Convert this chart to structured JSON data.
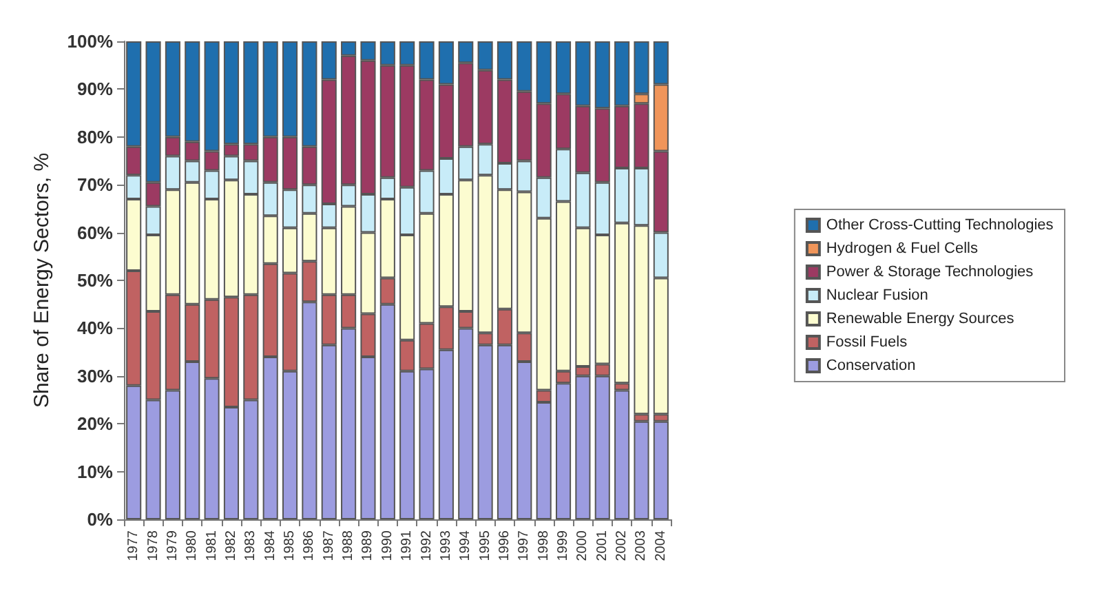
{
  "chart_data": {
    "type": "bar",
    "stacked": true,
    "ylabel": "Share of Energy Sectors, %",
    "categories": [
      "1977",
      "1978",
      "1979",
      "1980",
      "1981",
      "1982",
      "1983",
      "1984",
      "1985",
      "1986",
      "1987",
      "1988",
      "1989",
      "1990",
      "1991",
      "1992",
      "1993",
      "1994",
      "1995",
      "1996",
      "1997",
      "1998",
      "1999",
      "2000",
      "2001",
      "2002",
      "2003",
      "2004"
    ],
    "series": [
      {
        "name": "Conservation",
        "color": "#9c9ce0",
        "values": [
          28,
          25,
          27,
          33,
          29.5,
          23.5,
          25,
          34,
          31,
          45.5,
          36.5,
          40,
          34,
          45,
          31,
          31.5,
          35.5,
          40,
          36.5,
          36.5,
          33,
          24.5,
          28.5,
          30,
          30,
          27,
          20.5,
          20.5
        ]
      },
      {
        "name": "Fossil Fuels",
        "color": "#c06262",
        "values": [
          24,
          18.5,
          20,
          12,
          16.5,
          23,
          22,
          19.5,
          20.5,
          8.5,
          10.5,
          7,
          9,
          5.5,
          6.5,
          9.5,
          9,
          3.5,
          2.5,
          7.5,
          6,
          2.5,
          2.5,
          2,
          2.5,
          1.5,
          1.5,
          1.5
        ]
      },
      {
        "name": "Renewable Energy Sources",
        "color": "#fcfcd0",
        "values": [
          15,
          16,
          22,
          25.5,
          21,
          24.5,
          21,
          10,
          9.5,
          10,
          14,
          18.5,
          17,
          16.5,
          22,
          23,
          23.5,
          27.5,
          33,
          25,
          29.5,
          36,
          35.5,
          29,
          27,
          33.5,
          39.5,
          28.5
        ]
      },
      {
        "name": "Nuclear Fusion",
        "color": "#c8ecf8",
        "values": [
          5,
          6,
          7,
          4.5,
          6,
          5,
          7,
          7,
          8,
          6,
          5,
          4.5,
          8,
          4.5,
          10,
          9,
          7.5,
          7,
          6.5,
          5.5,
          6.5,
          8.5,
          11,
          11.5,
          11,
          11.5,
          12,
          9.5
        ]
      },
      {
        "name": "Power & Storage Technologies",
        "color": "#9c3a62",
        "values": [
          6,
          5,
          4,
          4,
          4,
          2.5,
          3.5,
          9.5,
          11,
          8,
          26,
          27,
          28,
          23.5,
          25.5,
          19,
          15.5,
          17.5,
          15.5,
          17.5,
          14.5,
          15.5,
          11.5,
          14,
          15.5,
          13,
          13.5,
          17
        ]
      },
      {
        "name": "Hydrogen & Fuel Cells",
        "color": "#f0955a",
        "values": [
          null,
          null,
          null,
          null,
          null,
          null,
          null,
          null,
          null,
          null,
          null,
          null,
          null,
          null,
          null,
          null,
          null,
          null,
          null,
          null,
          null,
          null,
          null,
          null,
          null,
          null,
          2,
          14
        ]
      },
      {
        "name": "Other Cross-Cutting Technologies",
        "color": "#1f6fae",
        "values": [
          22,
          29.5,
          20,
          21,
          23,
          21.5,
          21.5,
          20,
          20,
          22,
          8,
          3,
          4,
          5,
          5,
          8,
          9,
          4.5,
          6,
          8,
          10.5,
          13,
          11,
          13.5,
          14,
          13.5,
          11,
          9
        ]
      }
    ],
    "ylim": [
      0,
      100
    ],
    "yticks": [
      {
        "value": 0,
        "label": "0%"
      },
      {
        "value": 10,
        "label": "10%"
      },
      {
        "value": 20,
        "label": "20%"
      },
      {
        "value": 30,
        "label": "30%"
      },
      {
        "value": 40,
        "label": "40%"
      },
      {
        "value": 50,
        "label": "50%"
      },
      {
        "value": 60,
        "label": "60%"
      },
      {
        "value": 70,
        "label": "70%"
      },
      {
        "value": 80,
        "label": "80%"
      },
      {
        "value": 90,
        "label": "90%"
      },
      {
        "value": 100,
        "label": "100%"
      }
    ],
    "grid": false,
    "legend": "right"
  }
}
